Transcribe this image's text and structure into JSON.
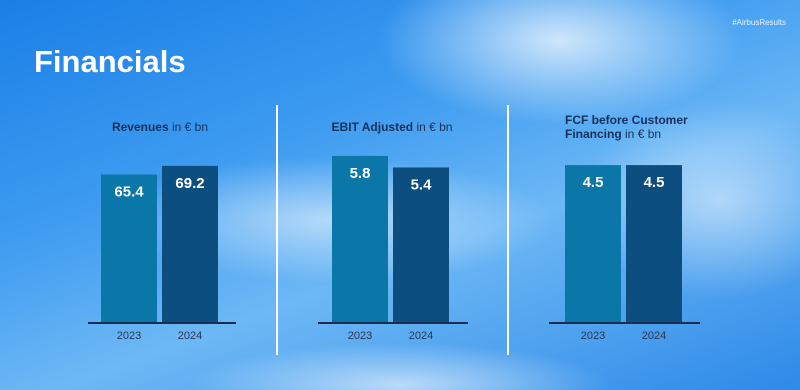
{
  "hashtag": "#AirbusResults",
  "heading": "Financials",
  "chart_data": [
    {
      "type": "bar",
      "title": "Revenues",
      "unit": "in € bn",
      "categories": [
        "2023",
        "2024"
      ],
      "values": [
        65.4,
        69.2
      ],
      "colors": [
        "#0b77a9",
        "#0d4e80"
      ],
      "ylim": [
        0,
        85
      ]
    },
    {
      "type": "bar",
      "title": "EBIT Adjusted",
      "unit": "in € bn",
      "categories": [
        "2023",
        "2024"
      ],
      "values": [
        5.8,
        5.4
      ],
      "colors": [
        "#0b77a9",
        "#0d4e80"
      ],
      "ylim": [
        0,
        6.7
      ]
    },
    {
      "type": "bar",
      "title": "FCF before Customer Financing",
      "unit": "in € bn",
      "categories": [
        "2023",
        "2024"
      ],
      "values": [
        4.5,
        4.5
      ],
      "colors": [
        "#0b77a9",
        "#0d4e80"
      ],
      "ylim": [
        0,
        5.5
      ]
    }
  ]
}
